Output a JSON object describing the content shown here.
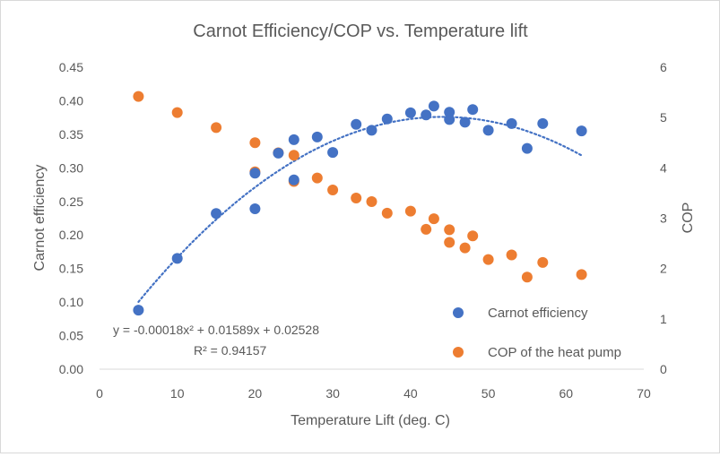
{
  "chart_data": {
    "type": "scatter",
    "title": "Carnot Efficiency/COP vs. Temperature lift",
    "xlabel": "Temperature Lift (deg. C)",
    "ylabel": "Carnot efficiency",
    "y2label": "COP",
    "xlim": [
      0,
      70
    ],
    "ylim": [
      0,
      0.45
    ],
    "y2lim": [
      0,
      6
    ],
    "x_ticks": [
      "0",
      "10",
      "20",
      "30",
      "40",
      "50",
      "60",
      "70"
    ],
    "y_ticks": [
      "0.00",
      "0.05",
      "0.10",
      "0.15",
      "0.20",
      "0.25",
      "0.30",
      "0.35",
      "0.40",
      "0.45"
    ],
    "y2_ticks": [
      "0",
      "1",
      "2",
      "3",
      "4",
      "5",
      "6"
    ],
    "grid": false,
    "legend_position": "bottom-right",
    "series": [
      {
        "name": "Carnot efficiency",
        "axis": "left",
        "color": "#4472C4",
        "points": [
          [
            5,
            0.088
          ],
          [
            10,
            0.165
          ],
          [
            15,
            0.232
          ],
          [
            20,
            0.292
          ],
          [
            20,
            0.239
          ],
          [
            23,
            0.322
          ],
          [
            25,
            0.342
          ],
          [
            25,
            0.282
          ],
          [
            28,
            0.346
          ],
          [
            30,
            0.323
          ],
          [
            33,
            0.365
          ],
          [
            35,
            0.356
          ],
          [
            37,
            0.373
          ],
          [
            40,
            0.382
          ],
          [
            42,
            0.379
          ],
          [
            43,
            0.392
          ],
          [
            45,
            0.383
          ],
          [
            45,
            0.372
          ],
          [
            47,
            0.368
          ],
          [
            48,
            0.387
          ],
          [
            50,
            0.356
          ],
          [
            53,
            0.366
          ],
          [
            55,
            0.329
          ],
          [
            57,
            0.366
          ],
          [
            62,
            0.355
          ]
        ]
      },
      {
        "name": "COP of the heat pump",
        "axis": "right",
        "color": "#ED7D31",
        "points": [
          [
            5,
            5.42
          ],
          [
            10,
            5.1
          ],
          [
            15,
            4.8
          ],
          [
            20,
            4.5
          ],
          [
            20,
            3.92
          ],
          [
            23,
            4.3
          ],
          [
            25,
            4.25
          ],
          [
            25,
            3.73
          ],
          [
            28,
            3.8
          ],
          [
            30,
            3.56
          ],
          [
            33,
            3.4
          ],
          [
            35,
            3.33
          ],
          [
            37,
            3.1
          ],
          [
            40,
            3.14
          ],
          [
            42,
            2.78
          ],
          [
            43,
            2.99
          ],
          [
            45,
            2.77
          ],
          [
            45,
            2.52
          ],
          [
            47,
            2.41
          ],
          [
            48,
            2.65
          ],
          [
            50,
            2.18
          ],
          [
            53,
            2.27
          ],
          [
            55,
            1.83
          ],
          [
            57,
            2.12
          ],
          [
            62,
            1.88
          ]
        ]
      }
    ],
    "trendline": {
      "series": "Carnot efficiency",
      "type": "polynomial",
      "order": 2,
      "coefficients": [
        -0.00018,
        0.01589,
        0.02528
      ],
      "x_range": [
        5,
        62
      ],
      "style": "dotted",
      "color": "#4472C4",
      "equation": "y = -0.00018x² + 0.01589x + 0.02528",
      "r_squared": "R² = 0.94157"
    }
  }
}
